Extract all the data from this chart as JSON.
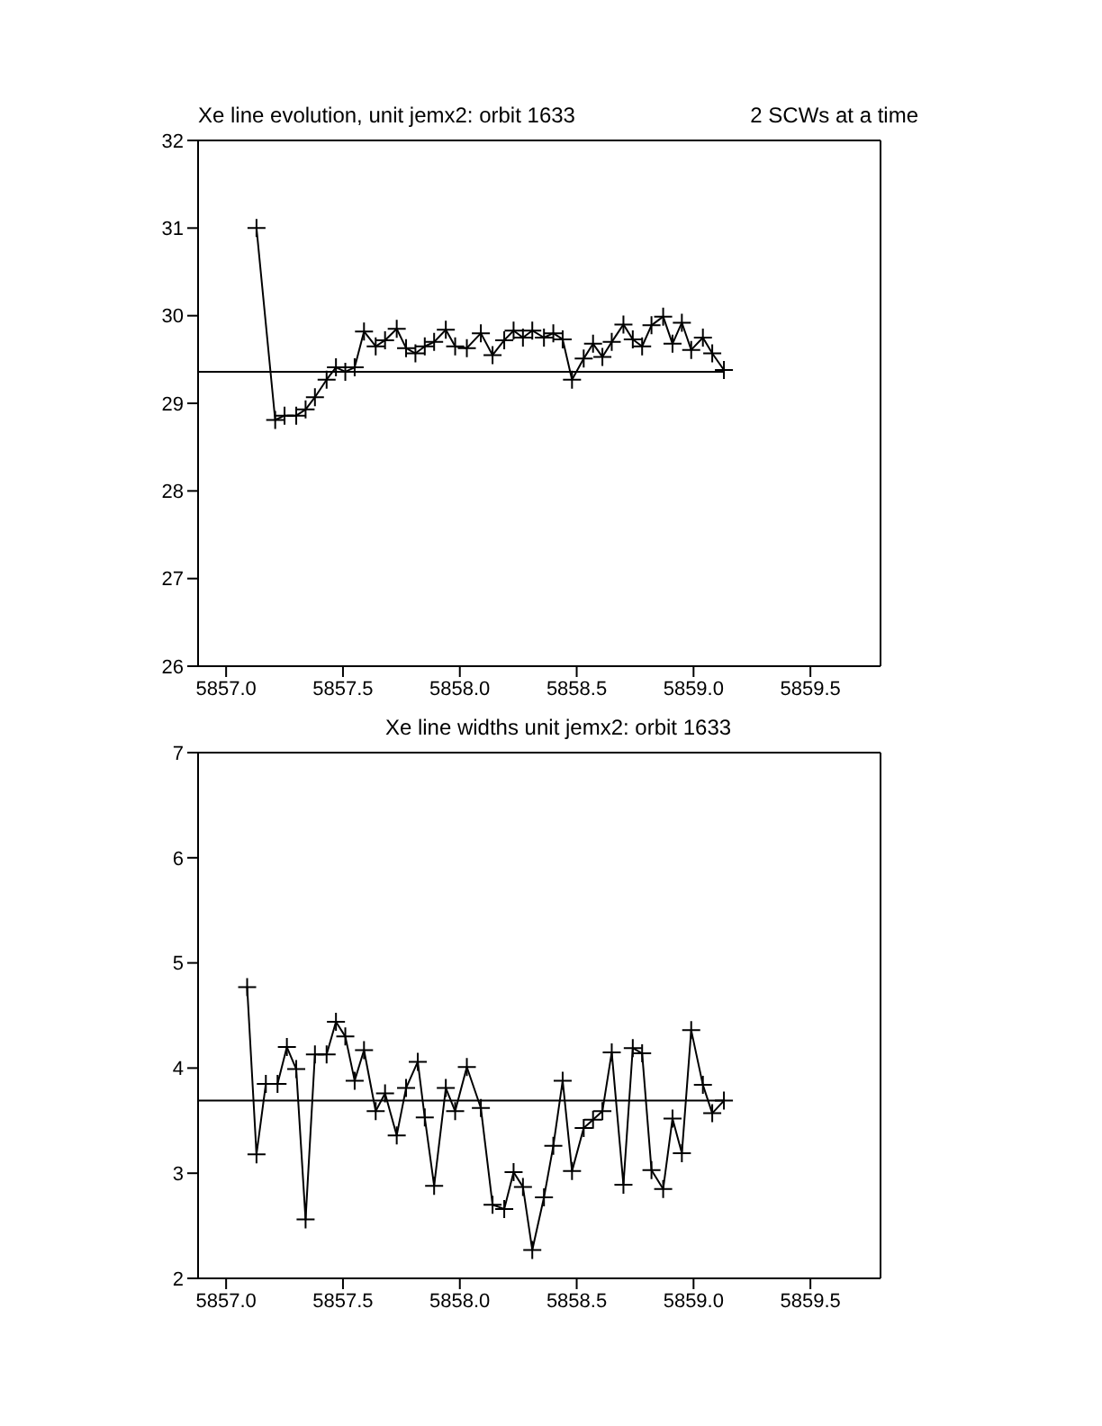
{
  "chart_data": [
    {
      "type": "line",
      "title": "Xe line evolution, unit jemx2: orbit 1633",
      "subtitle": "2 SCWs at a time",
      "marker": "cross",
      "line_style": "solid",
      "xlim": [
        5856.88,
        5859.8
      ],
      "xticks": [
        {
          "value": 5857,
          "label": "5857.0"
        },
        {
          "value": 5857.5,
          "label": "5857.5"
        },
        {
          "value": 5858,
          "label": "5858.0"
        },
        {
          "value": 5858.5,
          "label": "5858.5"
        },
        {
          "value": 5859,
          "label": "5859.0"
        },
        {
          "value": 5859.5,
          "label": "5859.5"
        }
      ],
      "ylim": [
        26,
        32
      ],
      "yticks": [
        26,
        27,
        28,
        29,
        30,
        31,
        32
      ],
      "series": [
        {
          "color": "#000000",
          "x": [
            5857.13,
            5857.21,
            5857.25,
            5857.3,
            5857.34,
            5857.38,
            5857.43,
            5857.47,
            5857.51,
            5857.55,
            5857.59,
            5857.64,
            5857.68,
            5857.73,
            5857.77,
            5857.81,
            5857.85,
            5857.89,
            5857.94,
            5857.98,
            5858.03,
            5858.09,
            5858.14,
            5858.19,
            5858.23,
            5858.27,
            5858.31,
            5858.36,
            5858.4,
            5858.44,
            5858.48,
            5858.53,
            5858.57,
            5858.61,
            5858.65,
            5858.7,
            5858.74,
            5858.78,
            5858.82,
            5858.87,
            5858.91,
            5858.95,
            5858.99,
            5859.04,
            5859.08,
            5859.13
          ],
          "values": [
            31.0,
            28.81,
            28.86,
            28.86,
            28.93,
            29.07,
            29.27,
            29.41,
            29.36,
            29.41,
            29.82,
            29.65,
            29.72,
            29.85,
            29.63,
            29.57,
            29.65,
            29.7,
            29.84,
            29.65,
            29.63,
            29.8,
            29.55,
            29.72,
            29.83,
            29.75,
            29.83,
            29.75,
            29.8,
            29.73,
            29.27,
            29.51,
            29.68,
            29.53,
            29.7,
            29.9,
            29.73,
            29.65,
            29.89,
            29.99,
            29.68,
            29.92,
            29.61,
            29.75,
            29.57,
            29.38
          ]
        },
        {
          "color": "#000000",
          "type": "line",
          "marker": "none",
          "x": [
            5856.88,
            5859.13
          ],
          "values": [
            29.36,
            29.36
          ]
        }
      ]
    },
    {
      "type": "line",
      "title": "Xe line widths unit jemx2: orbit 1633",
      "marker": "cross",
      "line_style": "solid",
      "xlim": [
        5856.88,
        5859.8
      ],
      "xticks": [
        {
          "value": 5857,
          "label": "5857.0"
        },
        {
          "value": 5857.5,
          "label": "5857.5"
        },
        {
          "value": 5858,
          "label": "5858.0"
        },
        {
          "value": 5858.5,
          "label": "5858.5"
        },
        {
          "value": 5859,
          "label": "5859.0"
        },
        {
          "value": 5859.5,
          "label": "5859.5"
        }
      ],
      "ylim": [
        2,
        7
      ],
      "yticks": [
        2,
        3,
        4,
        5,
        6,
        7
      ],
      "series": [
        {
          "color": "#000000",
          "x": [
            5857.09,
            5857.13,
            5857.17,
            5857.22,
            5857.26,
            5857.3,
            5857.34,
            5857.38,
            5857.43,
            5857.47,
            5857.51,
            5857.55,
            5857.59,
            5857.64,
            5857.68,
            5857.73,
            5857.77,
            5857.82,
            5857.85,
            5857.89,
            5857.94,
            5857.98,
            5858.03,
            5858.09,
            5858.14,
            5858.19,
            5858.23,
            5858.27,
            5858.31,
            5858.36,
            5858.4,
            5858.44,
            5858.48,
            5858.53,
            5858.57,
            5858.61,
            5858.65,
            5858.7,
            5858.74,
            5858.78,
            5858.82,
            5858.87,
            5858.91,
            5858.95,
            5858.99,
            5859.04,
            5859.08,
            5859.13
          ],
          "values": [
            4.77,
            3.18,
            3.85,
            3.85,
            4.2,
            3.99,
            2.56,
            4.13,
            4.13,
            4.44,
            4.3,
            3.88,
            4.17,
            3.59,
            3.76,
            3.36,
            3.81,
            4.06,
            3.53,
            2.88,
            3.81,
            3.59,
            4.01,
            3.62,
            2.7,
            2.66,
            3.01,
            2.87,
            2.27,
            2.77,
            3.26,
            3.88,
            3.02,
            3.43,
            3.51,
            3.59,
            4.15,
            2.89,
            4.19,
            4.14,
            3.03,
            2.85,
            3.52,
            3.19,
            4.36,
            3.84,
            3.57,
            3.69
          ]
        },
        {
          "color": "#000000",
          "type": "line",
          "marker": "none",
          "x": [
            5856.88,
            5859.13
          ],
          "values": [
            3.69,
            3.69
          ]
        }
      ]
    }
  ]
}
